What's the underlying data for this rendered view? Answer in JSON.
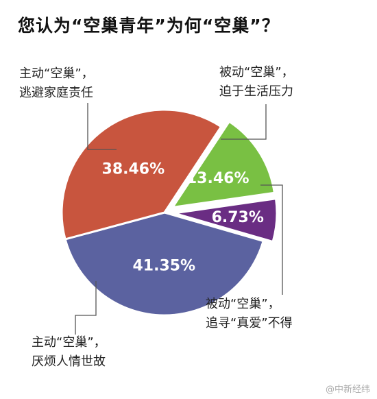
{
  "chart_data": {
    "type": "pie",
    "title": "您认为“空巢青年”为何“空巢”？",
    "slices": [
      {
        "line1": "被动“空巢”，",
        "line2": "迫于生活压力",
        "value": 13.46,
        "label": "13.46%",
        "color": "#79c043",
        "explode": true
      },
      {
        "line1": "被动“空巢”，",
        "line2": "追寻“真爱”不得",
        "value": 6.73,
        "label": "6.73%",
        "color": "#6a2d83",
        "explode": true
      },
      {
        "line1": "主动“空巢”，",
        "line2": "厌烦人情世故",
        "value": 41.35,
        "label": "41.35%",
        "color": "#5b62a0",
        "explode": false
      },
      {
        "line1": "主动“空巢”，",
        "line2": "逃避家庭责任",
        "value": 38.46,
        "label": "38.46%",
        "color": "#c8553e",
        "explode": false
      }
    ]
  },
  "watermark": "@中新经纬"
}
